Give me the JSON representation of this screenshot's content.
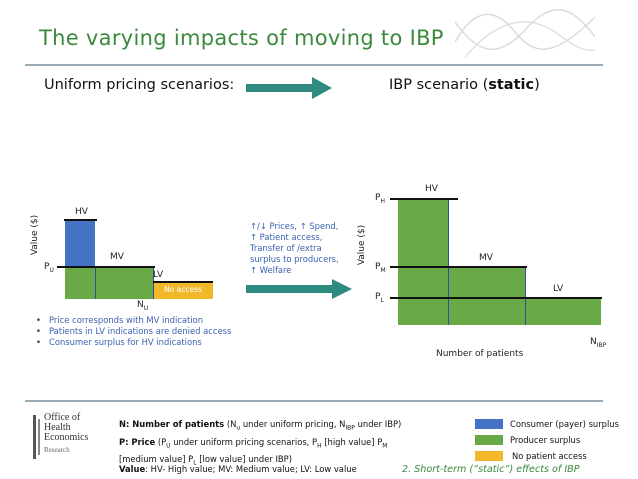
{
  "title": "The varying impacts of moving to IBP",
  "headings": {
    "uniform": "Uniform pricing scenarios:",
    "ibp_prefix": "IBP scenario (",
    "ibp_bold": "static",
    "ibp_suffix": ")"
  },
  "colors": {
    "title_green": "#3a8a3d",
    "arrow_teal": "#2f8a82",
    "consumer_blue": "#4472c4",
    "producer_green": "#6aaa46",
    "no_access_yellow": "#f2b82a"
  },
  "left_chart": {
    "y_axis_label": "Value ($)",
    "price_label": "P",
    "price_sub": "U",
    "bars": [
      {
        "label": "HV"
      },
      {
        "label": "MV"
      },
      {
        "label": "LV"
      }
    ],
    "no_access_label": "No access",
    "n_label": "N",
    "n_sub": "U"
  },
  "middle_text": [
    "↑/↓ Prices, ↑ Spend,",
    "↑ Patient access,",
    "Transfer of /extra",
    "surplus to producers,",
    "↑ Welfare"
  ],
  "right_chart": {
    "y_axis_label": "Value ($)",
    "prices": [
      {
        "main": "P",
        "sub": "H"
      },
      {
        "main": "P",
        "sub": "M"
      },
      {
        "main": "P",
        "sub": "L"
      }
    ],
    "bars": [
      {
        "label": "HV"
      },
      {
        "label": "MV"
      },
      {
        "label": "LV"
      }
    ],
    "x_axis_label": "Number of patients",
    "n_label": "N",
    "n_sub": "IBP"
  },
  "bullets": [
    "Price corresponds with MV indication",
    "Patients in LV indications are denied access",
    "Consumer surplus for HV indications"
  ],
  "logo": {
    "lines": [
      "Office of",
      "Health",
      "Economics",
      "Research"
    ]
  },
  "footnotes": {
    "n_bold": "N: Number of patients",
    "n_rest_1": " (N",
    "n_sub_u": "u",
    "n_rest_2": " under uniform pricing, N",
    "n_sub_ibp": "IBP",
    "n_rest_3": " under IBP)",
    "p_bold": "P: Price",
    "p_rest_1": " (P",
    "p_sub_u": "U",
    "p_rest_2": " under uniform pricing scenarios, P",
    "p_sub_h": "H",
    "p_rest_3": " [high value] P",
    "p_sub_m": "M",
    "p_line2_1": "[medium value] P",
    "p_sub_l": "L",
    "p_line2_2": " [low value] under IBP)",
    "v_bold": "Value",
    "v_rest": ": HV- High value; MV: Medium value; LV: Low value"
  },
  "legend": [
    {
      "label": "Consumer (payer) surplus",
      "color": "#4472c4"
    },
    {
      "label": "Producer surplus",
      "color": "#6aaa46"
    },
    {
      "label": "No patient access",
      "color": "#f2b82a"
    }
  ],
  "slide_caption": "2. Short-term (“static”) effects of IBP"
}
